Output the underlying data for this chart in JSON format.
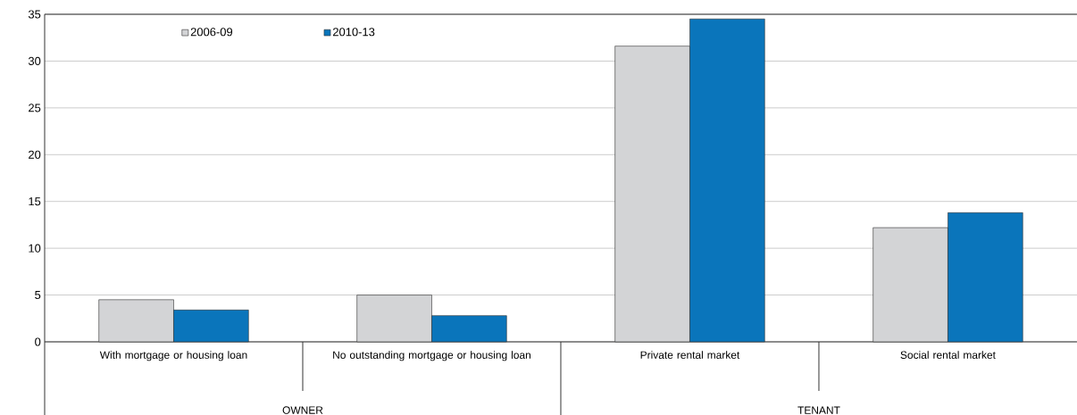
{
  "chart_data": {
    "type": "bar",
    "categories": [
      "With mortgage or housing loan",
      "No outstanding mortgage or housing loan",
      "Private rental market",
      "Social rental market"
    ],
    "series": [
      {
        "name": "2006-09",
        "color": "#d3d4d6",
        "values": [
          4.5,
          5.0,
          31.6,
          12.2
        ]
      },
      {
        "name": "2010-13",
        "color": "#0a75bb",
        "values": [
          3.4,
          2.8,
          34.5,
          13.8
        ]
      }
    ],
    "ylim": [
      0,
      35
    ],
    "yticks": [
      0,
      5,
      10,
      15,
      20,
      25,
      30,
      35
    ],
    "grid": "y",
    "legend": "top left",
    "annotations": [
      "OWNER",
      "TENANT"
    ]
  }
}
